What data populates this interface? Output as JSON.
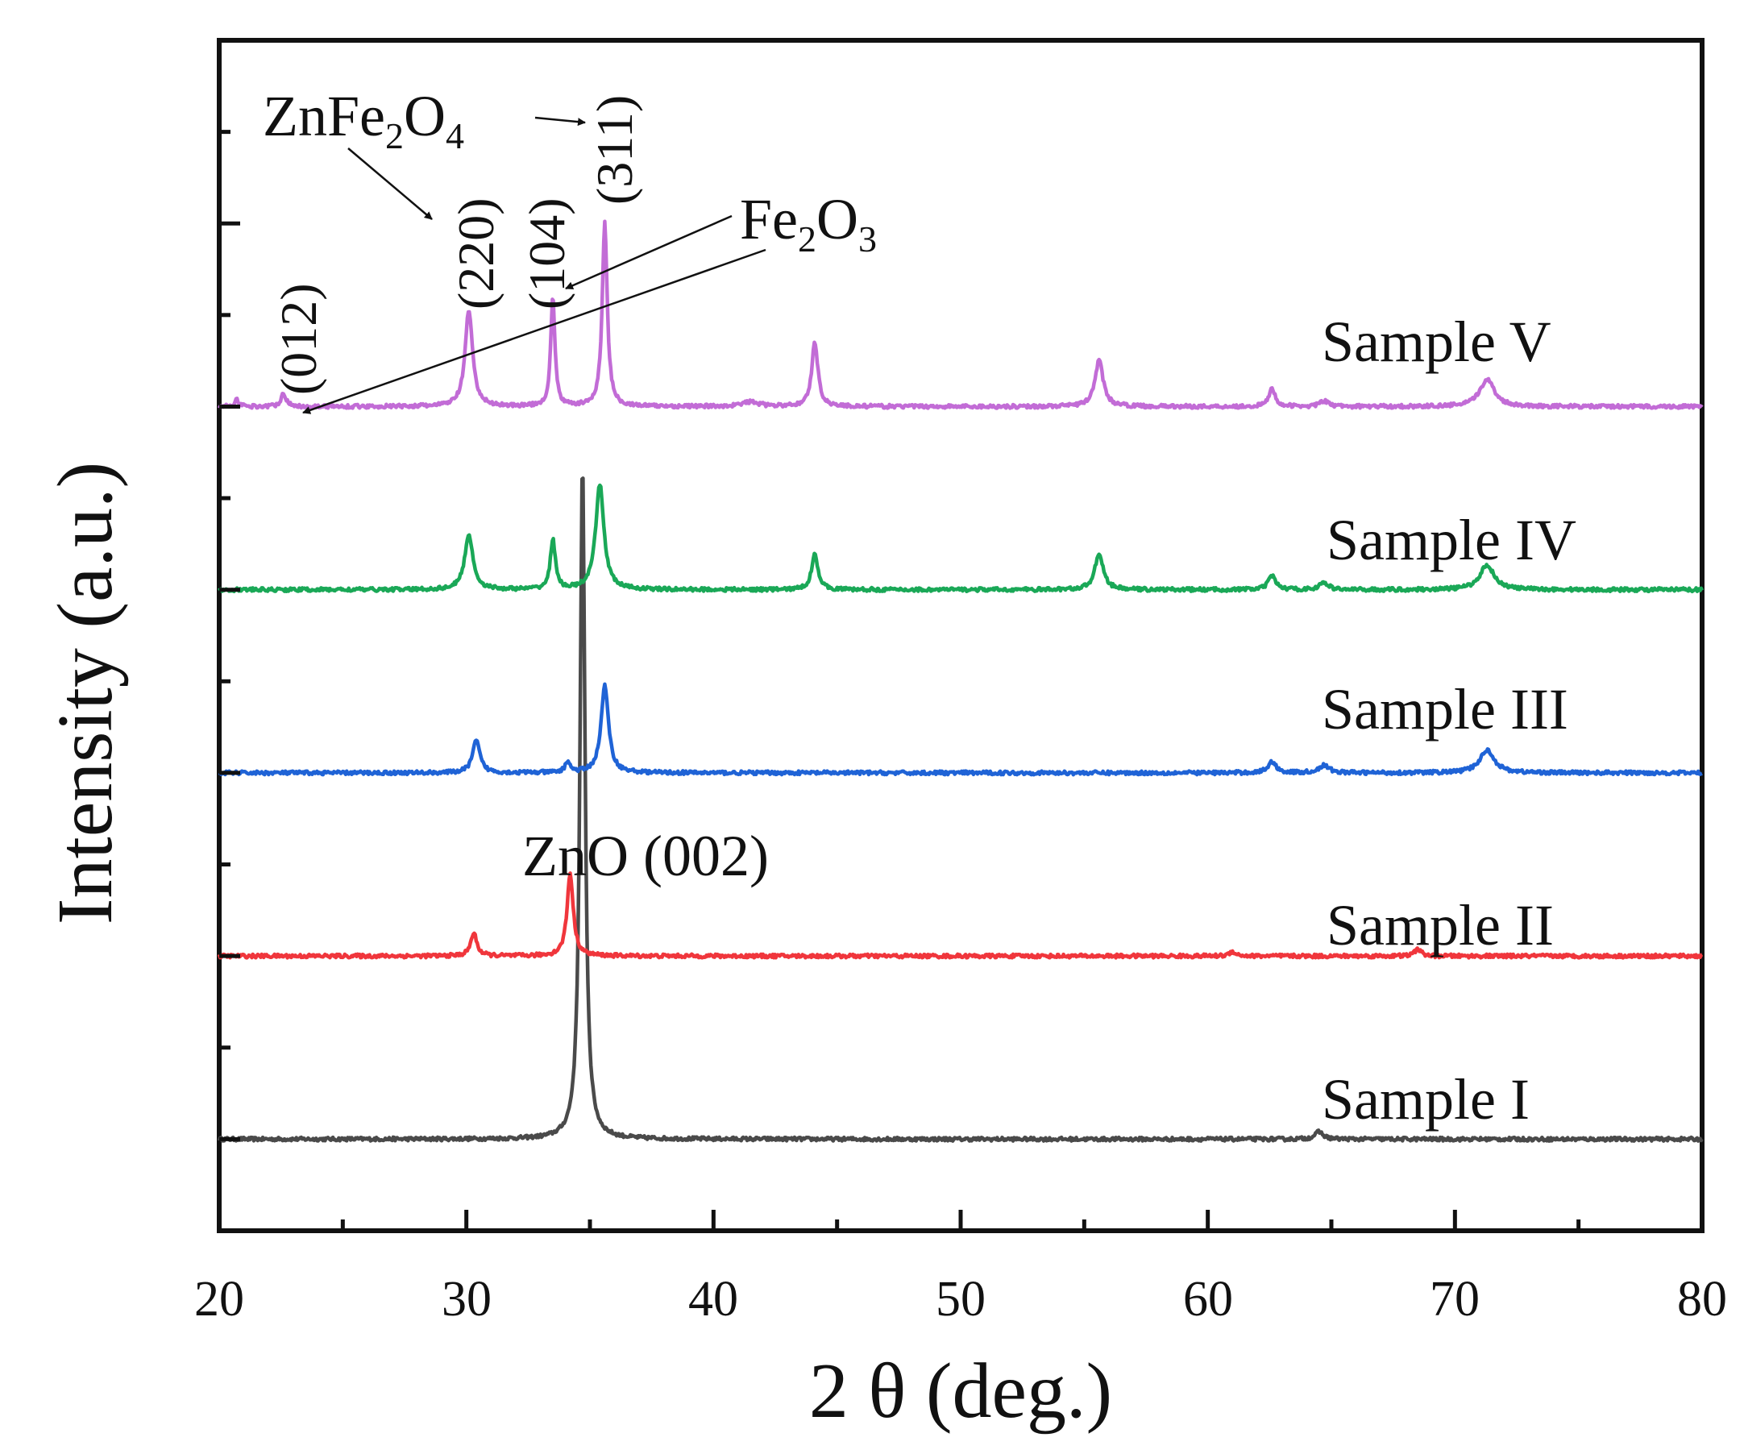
{
  "chart_data": {
    "type": "line",
    "title": "",
    "xlabel": "2 θ (deg.)",
    "ylabel": "Intensity (a.u.)",
    "xlim": [
      20,
      80
    ],
    "ylim": [
      0,
      13
    ],
    "x_ticks": [
      "20",
      "30",
      "40",
      "50",
      "60",
      "70",
      "80"
    ],
    "grid": false,
    "noise_amplitude": 0.04,
    "series": [
      {
        "name": "Sample I",
        "color": "#4a4a4a",
        "baseline": 1.0,
        "peaks": [
          {
            "x": 34.7,
            "h": 7.4,
            "w": 0.12
          },
          {
            "x": 64.5,
            "h": 0.08,
            "w": 0.2
          }
        ]
      },
      {
        "name": "Sample II",
        "color": "#f0363c",
        "baseline": 3.0,
        "peaks": [
          {
            "x": 30.3,
            "h": 0.25,
            "w": 0.15
          },
          {
            "x": 34.2,
            "h": 0.9,
            "w": 0.15
          },
          {
            "x": 61.0,
            "h": 0.05,
            "w": 0.15
          },
          {
            "x": 68.5,
            "h": 0.08,
            "w": 0.15
          }
        ]
      },
      {
        "name": "Sample III",
        "color": "#1f63d6",
        "baseline": 5.0,
        "peaks": [
          {
            "x": 30.4,
            "h": 0.35,
            "w": 0.18
          },
          {
            "x": 34.1,
            "h": 0.12,
            "w": 0.12
          },
          {
            "x": 35.6,
            "h": 0.95,
            "w": 0.18
          },
          {
            "x": 62.6,
            "h": 0.12,
            "w": 0.2
          },
          {
            "x": 64.7,
            "h": 0.08,
            "w": 0.25
          },
          {
            "x": 71.3,
            "h": 0.25,
            "w": 0.35
          }
        ]
      },
      {
        "name": "Sample IV",
        "color": "#1aa857",
        "baseline": 7.0,
        "peaks": [
          {
            "x": 30.1,
            "h": 0.6,
            "w": 0.2
          },
          {
            "x": 33.5,
            "h": 0.55,
            "w": 0.12
          },
          {
            "x": 35.4,
            "h": 1.15,
            "w": 0.2
          },
          {
            "x": 44.1,
            "h": 0.4,
            "w": 0.15
          },
          {
            "x": 55.6,
            "h": 0.4,
            "w": 0.2
          },
          {
            "x": 62.6,
            "h": 0.15,
            "w": 0.18
          },
          {
            "x": 64.7,
            "h": 0.08,
            "w": 0.2
          },
          {
            "x": 71.3,
            "h": 0.27,
            "w": 0.35
          }
        ]
      },
      {
        "name": "Sample V",
        "color": "#c26cd6",
        "baseline": 9.0,
        "peaks": [
          {
            "x": 20.7,
            "h": 0.08,
            "w": 0.1
          },
          {
            "x": 22.6,
            "h": 0.15,
            "w": 0.12
          },
          {
            "x": 30.1,
            "h": 1.05,
            "w": 0.18
          },
          {
            "x": 33.5,
            "h": 1.2,
            "w": 0.1
          },
          {
            "x": 35.6,
            "h": 2.0,
            "w": 0.12
          },
          {
            "x": 41.5,
            "h": 0.05,
            "w": 0.4
          },
          {
            "x": 44.1,
            "h": 0.7,
            "w": 0.15
          },
          {
            "x": 55.6,
            "h": 0.5,
            "w": 0.2
          },
          {
            "x": 62.6,
            "h": 0.2,
            "w": 0.15
          },
          {
            "x": 64.7,
            "h": 0.06,
            "w": 0.2
          },
          {
            "x": 71.3,
            "h": 0.3,
            "w": 0.35
          }
        ]
      }
    ],
    "series_labels": [
      "Sample V",
      "Sample IV",
      "Sample III",
      "Sample II",
      "Sample I"
    ],
    "annotations": {
      "zno_label": "ZnO (002)",
      "fe2o3_label": {
        "base": "Fe",
        "sub1": "2",
        "mid": "O",
        "sub2": "3"
      },
      "znfe2o4_label": {
        "base": "ZnFe",
        "sub1": "2",
        "mid": "O",
        "sub2": "4"
      },
      "hkl_012": "(012)",
      "hkl_220": "(220)",
      "hkl_104": "(104)",
      "hkl_311": "(311)"
    }
  }
}
